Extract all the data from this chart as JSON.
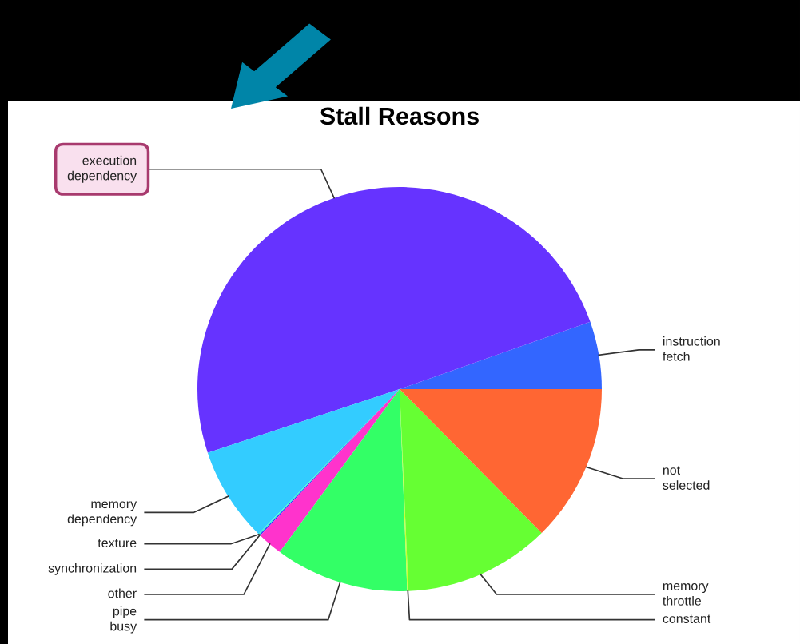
{
  "chart_data": {
    "type": "pie",
    "title": "Stall Reasons",
    "categories": [
      "instruction\nfetch",
      "execution\ndependency",
      "memory\ndependency",
      "texture",
      "synchronization",
      "other",
      "pipe\nbusy",
      "constant",
      "memory\nthrottle",
      "not\nselected"
    ],
    "values": [
      5.4,
      49.7,
      7.6,
      0.1,
      0.1,
      2.0,
      10.7,
      0.1,
      11.7,
      12.6
    ],
    "colors": [
      "#3366ff",
      "#6633ff",
      "#33ccff",
      "#33ffcc",
      "#3333ff",
      "#ff33cc",
      "#33ff66",
      "#ccff33",
      "#66ff33",
      "#ff6633"
    ],
    "legend": false
  }
}
